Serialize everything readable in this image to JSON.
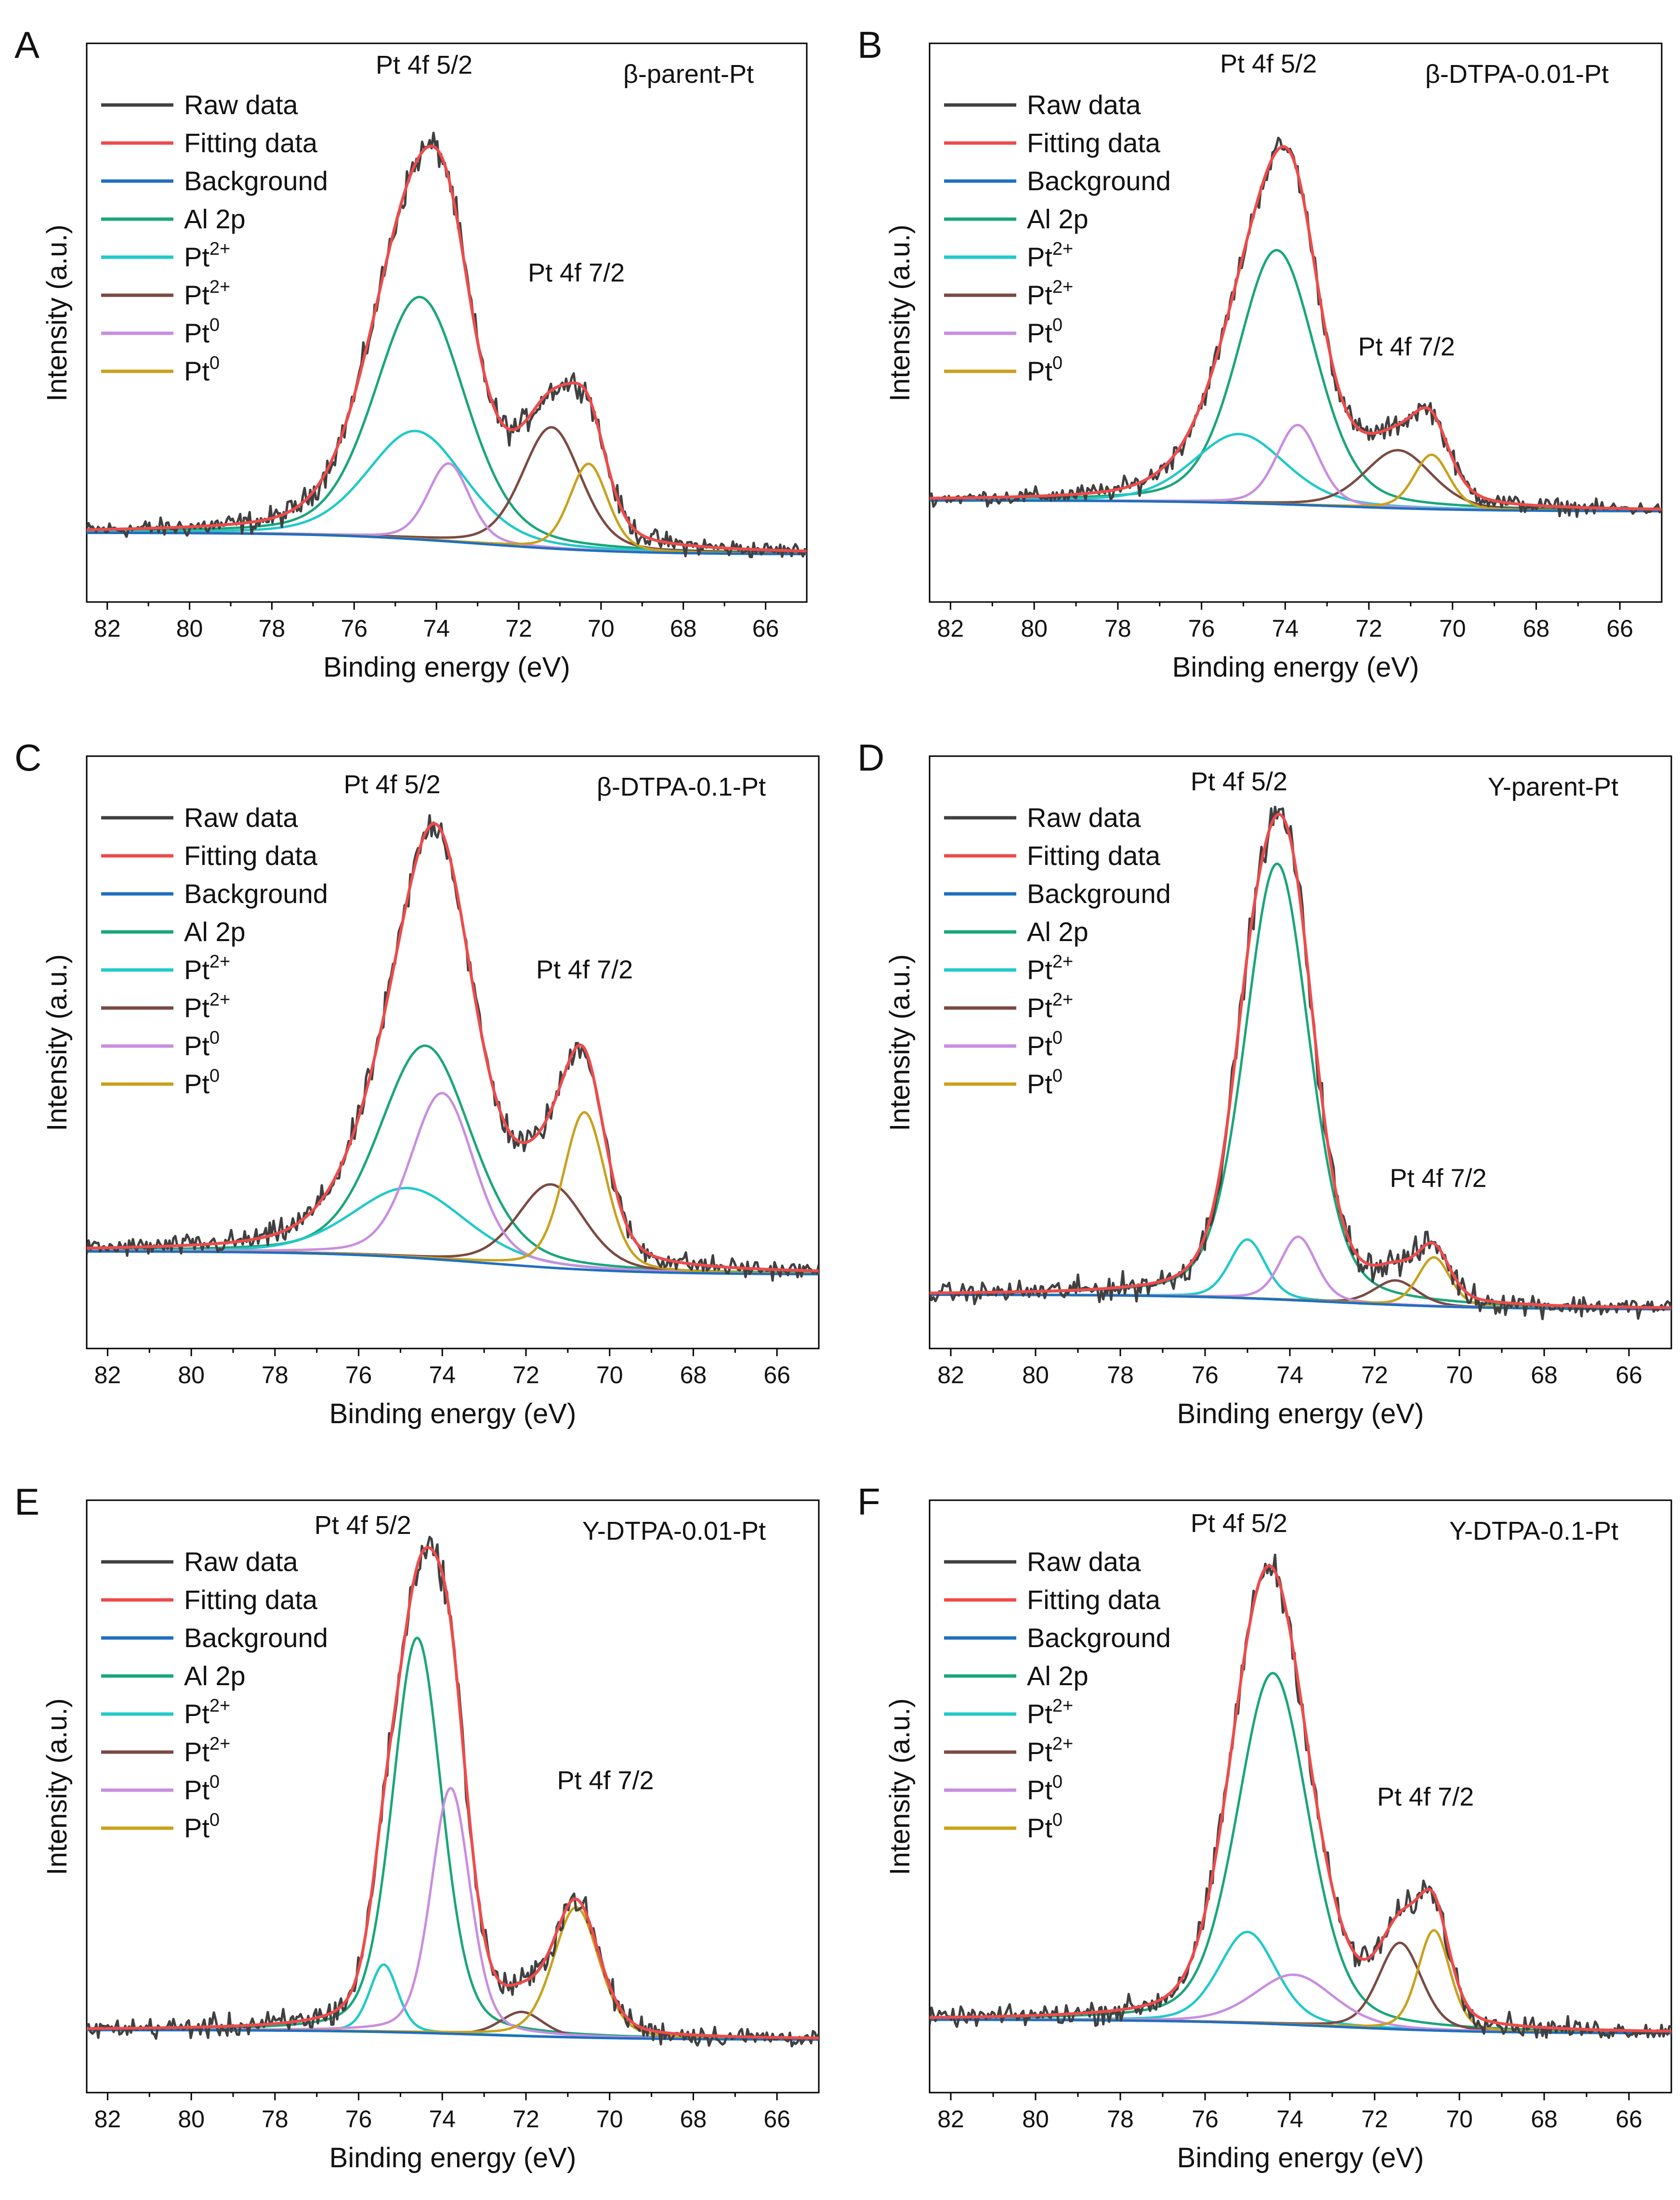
{
  "figure": {
    "shared": {
      "xlabel": "Binding energy (eV)",
      "ylabel": "Intensity (a.u.)",
      "xlim": [
        82.5,
        65
      ],
      "x_ticks": [
        82,
        80,
        78,
        76,
        74,
        72,
        70,
        68,
        66
      ],
      "legend": [
        {
          "name": "Raw data",
          "base": "Raw data",
          "sup": "",
          "color": "#404040"
        },
        {
          "name": "Fitting data",
          "base": "Fitting data",
          "sup": "",
          "color": "#ee4b4b"
        },
        {
          "name": "Background",
          "base": "Background",
          "sup": "",
          "color": "#1f6fbf"
        },
        {
          "name": "Al 2p",
          "base": "Al 2p",
          "sup": "",
          "color": "#1aa67a"
        },
        {
          "name": "Pt2+ (a)",
          "base": "Pt",
          "sup": "2+",
          "color": "#22c9c9"
        },
        {
          "name": "Pt2+ (b)",
          "base": "Pt",
          "sup": "2+",
          "color": "#7a4a42"
        },
        {
          "name": "Pt0 (a)",
          "base": "Pt",
          "sup": "0",
          "color": "#c88ee0"
        },
        {
          "name": "Pt0 (b)",
          "base": "Pt",
          "sup": "0",
          "color": "#c9a11d"
        }
      ]
    }
  },
  "chart_data": [
    {
      "type": "line",
      "panel": "A",
      "sample": "β-parent-Pt",
      "title": "β-parent-Pt",
      "xlabel": "Binding energy (eV)",
      "ylabel": "Intensity (a.u.)",
      "xlim": [
        82.5,
        65
      ],
      "ylim": [
        -0.16,
        1.13
      ],
      "annotations": [
        {
          "text": "Pt 4f 5/2",
          "x": 74.3,
          "y": 1.06
        },
        {
          "text": "Pt 4f 7/2",
          "x": 70.6,
          "y": 0.58
        }
      ],
      "background": {
        "left": 0.0,
        "right": -0.05
      },
      "series": [
        {
          "name": "Al 2p",
          "center": 74.4,
          "height": 0.56,
          "fwhm": 2.6
        },
        {
          "name": "Pt2+ (a)",
          "center": 74.5,
          "height": 0.25,
          "fwhm": 2.8
        },
        {
          "name": "Pt2+ (b)",
          "center": 71.2,
          "height": 0.28,
          "fwhm": 1.7
        },
        {
          "name": "Pt0 (a)",
          "center": 73.7,
          "height": 0.18,
          "fwhm": 1.2
        },
        {
          "name": "Pt0 (b)",
          "center": 70.3,
          "height": 0.2,
          "fwhm": 1.1
        }
      ]
    },
    {
      "type": "line",
      "panel": "B",
      "sample": "β-DTPA-0.01-Pt",
      "title": "β-DTPA-0.01-Pt",
      "xlabel": "Binding energy (eV)",
      "ylabel": "Intensity (a.u.)",
      "xlim": [
        82.5,
        65
      ],
      "ylim": [
        -0.28,
        1.26
      ],
      "annotations": [
        {
          "text": "Pt 4f 5/2",
          "x": 74.4,
          "y": 1.18
        },
        {
          "text": "Pt 4f 7/2",
          "x": 71.1,
          "y": 0.4
        }
      ],
      "background": {
        "left": 0.0,
        "right": -0.03
      },
      "series": [
        {
          "name": "Al 2p",
          "center": 74.2,
          "height": 0.7,
          "fwhm": 2.2
        },
        {
          "name": "Pt2+ (a)",
          "center": 75.1,
          "height": 0.19,
          "fwhm": 2.6
        },
        {
          "name": "Pt2+ (b)",
          "center": 71.3,
          "height": 0.16,
          "fwhm": 1.9
        },
        {
          "name": "Pt0 (a)",
          "center": 73.7,
          "height": 0.22,
          "fwhm": 1.2
        },
        {
          "name": "Pt0 (b)",
          "center": 70.5,
          "height": 0.15,
          "fwhm": 1.0
        }
      ]
    },
    {
      "type": "line",
      "panel": "C",
      "sample": "β-DTPA-0.1-Pt",
      "title": "β-DTPA-0.1-Pt",
      "xlabel": "Binding energy (eV)",
      "ylabel": "Intensity (a.u.)",
      "xlim": [
        82.5,
        65
      ],
      "ylim": [
        -0.21,
        1.07
      ],
      "annotations": [
        {
          "text": "Pt 4f 5/2",
          "x": 75.2,
          "y": 0.99
        },
        {
          "text": "Pt 4f 7/2",
          "x": 70.6,
          "y": 0.59
        }
      ],
      "background": {
        "left": 0.0,
        "right": -0.05
      },
      "series": [
        {
          "name": "Al 2p",
          "center": 74.4,
          "height": 0.46,
          "fwhm": 2.6
        },
        {
          "name": "Pt2+ (a)",
          "center": 74.8,
          "height": 0.15,
          "fwhm": 3.2
        },
        {
          "name": "Pt2+ (b)",
          "center": 71.4,
          "height": 0.18,
          "fwhm": 1.9
        },
        {
          "name": "Pt0 (a)",
          "center": 74.0,
          "height": 0.36,
          "fwhm": 1.8
        },
        {
          "name": "Pt0 (b)",
          "center": 70.6,
          "height": 0.34,
          "fwhm": 1.2
        }
      ]
    },
    {
      "type": "line",
      "panel": "D",
      "sample": "Y-parent-Pt",
      "title": "Y-parent-Pt",
      "xlabel": "Binding energy (eV)",
      "ylabel": "Intensity (a.u.)",
      "xlim": [
        82.5,
        65
      ],
      "ylim": [
        -0.11,
        1.1
      ],
      "annotations": [
        {
          "text": "Pt 4f 5/2",
          "x": 75.2,
          "y": 1.03
        },
        {
          "text": "Pt 4f 7/2",
          "x": 70.5,
          "y": 0.22
        }
      ],
      "background": {
        "left": 0.0,
        "right": -0.03
      },
      "series": [
        {
          "name": "Al 2p",
          "center": 74.3,
          "height": 0.89,
          "fwhm": 1.8
        },
        {
          "name": "Pt2+ (a)",
          "center": 75.0,
          "height": 0.12,
          "fwhm": 1.0
        },
        {
          "name": "Pt2+ (b)",
          "center": 71.5,
          "height": 0.05,
          "fwhm": 1.2
        },
        {
          "name": "Pt0 (a)",
          "center": 73.8,
          "height": 0.13,
          "fwhm": 1.0
        },
        {
          "name": "Pt0 (b)",
          "center": 70.6,
          "height": 0.1,
          "fwhm": 0.9
        }
      ]
    },
    {
      "type": "line",
      "panel": "E",
      "sample": "Y-DTPA-0.01-Pt",
      "title": "Y-DTPA-0.01-Pt",
      "xlabel": "Binding energy (eV)",
      "ylabel": "Intensity (a.u.)",
      "xlim": [
        82.5,
        65
      ],
      "ylim": [
        -0.13,
        1.1
      ],
      "annotations": [
        {
          "text": "Pt 4f 5/2",
          "x": 75.9,
          "y": 1.03
        },
        {
          "text": "Pt 4f 7/2",
          "x": 70.1,
          "y": 0.5
        }
      ],
      "background": {
        "left": 0.0,
        "right": -0.02
      },
      "series": [
        {
          "name": "Al 2p",
          "center": 74.6,
          "height": 0.82,
          "fwhm": 1.4
        },
        {
          "name": "Pt2+ (a)",
          "center": 75.4,
          "height": 0.14,
          "fwhm": 0.8
        },
        {
          "name": "Pt2+ (b)",
          "center": 72.1,
          "height": 0.05,
          "fwhm": 1.2
        },
        {
          "name": "Pt0 (a)",
          "center": 73.8,
          "height": 0.51,
          "fwhm": 1.1
        },
        {
          "name": "Pt0 (b)",
          "center": 70.8,
          "height": 0.27,
          "fwhm": 1.3
        }
      ]
    },
    {
      "type": "line",
      "panel": "F",
      "sample": "Y-DTPA-0.1-Pt",
      "title": "Y-DTPA-0.1-Pt",
      "xlabel": "Binding energy (eV)",
      "ylabel": "Intensity (a.u.)",
      "xlim": [
        82.5,
        65
      ],
      "ylim": [
        -0.16,
        1.14
      ],
      "annotations": [
        {
          "text": "Pt 4f 5/2",
          "x": 75.2,
          "y": 1.07
        },
        {
          "text": "Pt 4f 7/2",
          "x": 70.8,
          "y": 0.47
        }
      ],
      "background": {
        "left": 0.0,
        "right": -0.03
      },
      "series": [
        {
          "name": "Al 2p",
          "center": 74.4,
          "height": 0.77,
          "fwhm": 2.0
        },
        {
          "name": "Pt2+ (a)",
          "center": 75.0,
          "height": 0.2,
          "fwhm": 1.6
        },
        {
          "name": "Pt2+ (b)",
          "center": 71.4,
          "height": 0.19,
          "fwhm": 1.2
        },
        {
          "name": "Pt0 (a)",
          "center": 73.9,
          "height": 0.11,
          "fwhm": 2.2
        },
        {
          "name": "Pt0 (b)",
          "center": 70.6,
          "height": 0.22,
          "fwhm": 0.9
        }
      ]
    }
  ]
}
